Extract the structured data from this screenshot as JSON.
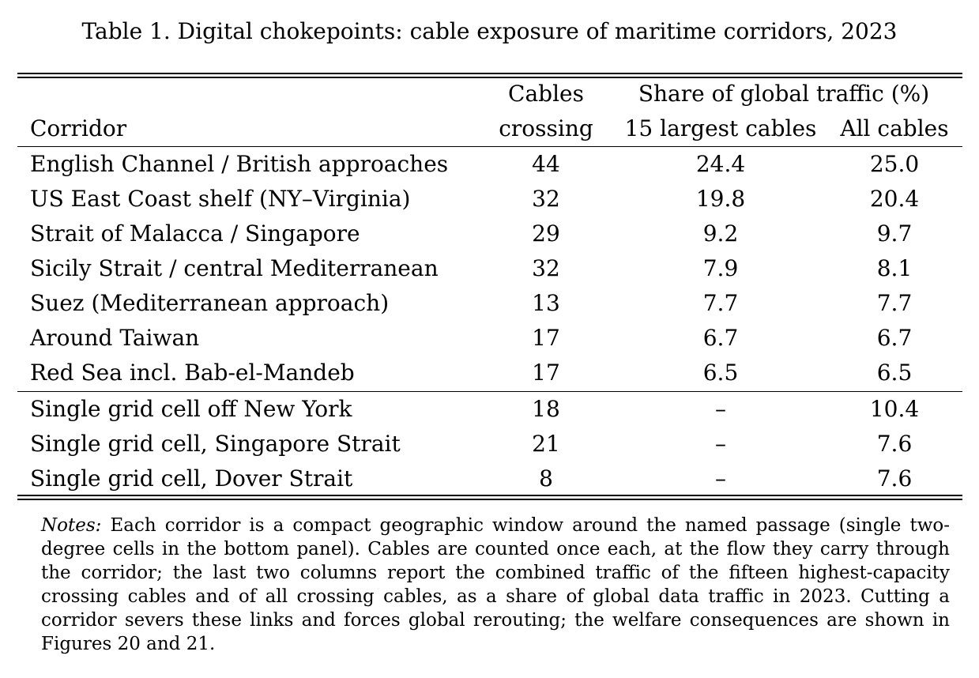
{
  "caption": "Table 1. Digital chokepoints: cable exposure of maritime corridors, 2023",
  "header": {
    "row1": {
      "cables": "Cables",
      "share_group": "Share of global traffic (%)"
    },
    "row2": {
      "corridor": "Corridor",
      "cables": "crossing",
      "largest": "15 largest cables",
      "all": "All cables"
    }
  },
  "rows_panel1": [
    {
      "corridor": "English Channel / British approaches",
      "cables": "44",
      "largest": "24.4",
      "all": "25.0"
    },
    {
      "corridor": "US East Coast shelf (NY–Virginia)",
      "cables": "32",
      "largest": "19.8",
      "all": "20.4"
    },
    {
      "corridor": "Strait of Malacca / Singapore",
      "cables": "29",
      "largest": "9.2",
      "all": "9.7"
    },
    {
      "corridor": "Sicily Strait / central Mediterranean",
      "cables": "32",
      "largest": "7.9",
      "all": "8.1"
    },
    {
      "corridor": "Suez (Mediterranean approach)",
      "cables": "13",
      "largest": "7.7",
      "all": "7.7"
    },
    {
      "corridor": "Around Taiwan",
      "cables": "17",
      "largest": "6.7",
      "all": "6.7"
    },
    {
      "corridor": "Red Sea incl. Bab-el-Mandeb",
      "cables": "17",
      "largest": "6.5",
      "all": "6.5"
    }
  ],
  "rows_panel2": [
    {
      "corridor": "Single grid cell off New York",
      "cables": "18",
      "largest": "–",
      "all": "10.4"
    },
    {
      "corridor": "Single grid cell, Singapore Strait",
      "cables": "21",
      "largest": "–",
      "all": "7.6"
    },
    {
      "corridor": "Single grid cell, Dover Strait",
      "cables": "8",
      "largest": "–",
      "all": "7.6"
    }
  ],
  "notes": {
    "label": "Notes:",
    "text": " Each corridor is a compact geographic window around the named passage (single two-degree cells in the bottom panel). Cables are counted once each, at the flow they carry through the corridor; the last two columns report the combined traffic of the fifteen highest-capacity crossing cables and of all crossing cables, as a share of global data traffic in 2023. Cutting a corridor severs these links and forces global rerouting; the welfare consequences are shown in Figures 20 and 21."
  }
}
